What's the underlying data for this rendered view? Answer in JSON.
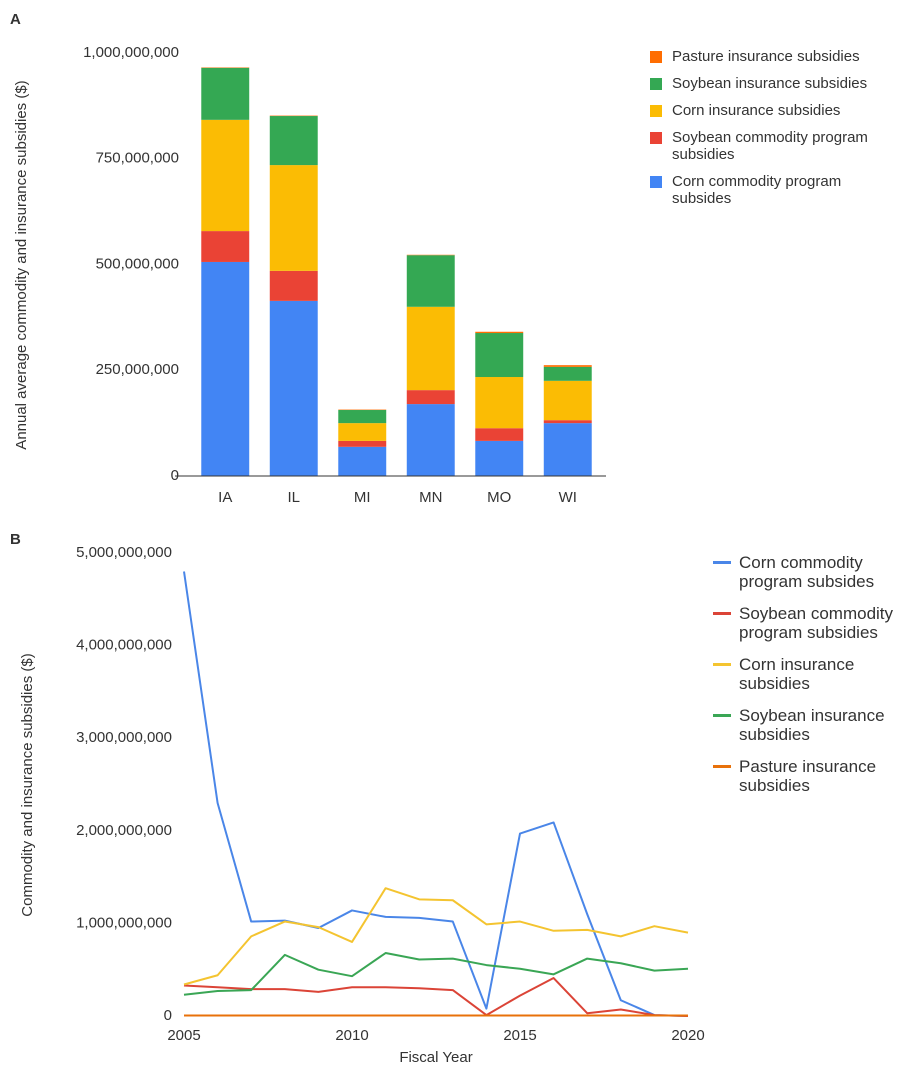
{
  "chart_data": [
    {
      "type": "stacked_bar",
      "panel_label": "A",
      "ylabel": "Annual average commodity and insurance subsidies ($)",
      "categories": [
        "IA",
        "IL",
        "MI",
        "MN",
        "MO",
        "WI"
      ],
      "series": [
        {
          "name": "Corn commodity program subsides",
          "color": "#4285f4",
          "values": [
            506000000,
            414000000,
            69000000,
            170000000,
            83000000,
            125000000
          ]
        },
        {
          "name": "Soybean commodity program subsidies",
          "color": "#ea4335",
          "values": [
            73000000,
            71000000,
            14000000,
            33000000,
            30000000,
            7000000
          ]
        },
        {
          "name": "Corn insurance subsidies",
          "color": "#fbbc04",
          "values": [
            263000000,
            250000000,
            42000000,
            197000000,
            121000000,
            93000000
          ]
        },
        {
          "name": "Soybean insurance subsidies",
          "color": "#34a853",
          "values": [
            123000000,
            116000000,
            31000000,
            122000000,
            104000000,
            33000000
          ]
        },
        {
          "name": "Pasture insurance subsidies",
          "color": "#ff6d01",
          "values": [
            1000000,
            1000000,
            1000000,
            1000000,
            3000000,
            4000000
          ]
        }
      ],
      "ylim": [
        0,
        1000000000
      ],
      "yticks": [
        0,
        {
          "value": 250000000,
          "label": "250,000,000"
        },
        {
          "value": 500000000,
          "label": "500,000,000"
        },
        {
          "value": 750000000,
          "label": "750,000,000"
        },
        {
          "value": 1000000000,
          "label": "1,000,000,000"
        }
      ]
    },
    {
      "type": "line",
      "panel_label": "B",
      "ylabel": "Commodity and insurance subsidies ($)",
      "xlabel": "Fiscal Year",
      "x": [
        2005,
        2006,
        2007,
        2008,
        2009,
        2010,
        2011,
        2012,
        2013,
        2014,
        2015,
        2016,
        2017,
        2018,
        2019,
        2020
      ],
      "series": [
        {
          "name": "Corn commodity program subsides",
          "color": "#4a86e8",
          "values": [
            4800000000,
            2300000000,
            1020000000,
            1030000000,
            950000000,
            1140000000,
            1070000000,
            1060000000,
            1020000000,
            80000000,
            1970000000,
            2090000000,
            1100000000,
            170000000,
            10000000,
            0
          ]
        },
        {
          "name": "Soybean commodity program subsidies",
          "color": "#db4437",
          "values": [
            330000000,
            310000000,
            290000000,
            290000000,
            260000000,
            310000000,
            310000000,
            300000000,
            280000000,
            10000000,
            220000000,
            410000000,
            30000000,
            70000000,
            10000000,
            0
          ]
        },
        {
          "name": "Corn insurance subsidies",
          "color": "#f4c430",
          "values": [
            340000000,
            440000000,
            860000000,
            1020000000,
            960000000,
            800000000,
            1380000000,
            1260000000,
            1250000000,
            990000000,
            1020000000,
            920000000,
            930000000,
            860000000,
            970000000,
            900000000
          ]
        },
        {
          "name": "Soybean insurance subsidies",
          "color": "#3aa655",
          "values": [
            230000000,
            270000000,
            280000000,
            660000000,
            500000000,
            430000000,
            680000000,
            610000000,
            620000000,
            550000000,
            510000000,
            450000000,
            620000000,
            570000000,
            490000000,
            510000000
          ]
        },
        {
          "name": "Pasture insurance subsidies",
          "color": "#e8710a",
          "values": [
            5000000,
            5000000,
            5000000,
            5000000,
            5000000,
            5000000,
            5000000,
            5000000,
            5000000,
            5000000,
            5000000,
            5000000,
            5000000,
            5000000,
            5000000,
            5000000
          ]
        }
      ],
      "xlim": [
        2005,
        2020
      ],
      "xticks": [
        2005,
        2010,
        2015,
        2020
      ],
      "ylim": [
        0,
        5000000000
      ],
      "yticks": [
        0,
        {
          "value": 1000000000,
          "label": "1,000,000,000"
        },
        {
          "value": 2000000000,
          "label": "2,000,000,000"
        },
        {
          "value": 3000000000,
          "label": "3,000,000,000"
        },
        {
          "value": 4000000000,
          "label": "4,000,000,000"
        },
        {
          "value": 5000000000,
          "label": "5,000,000,000"
        }
      ]
    }
  ]
}
